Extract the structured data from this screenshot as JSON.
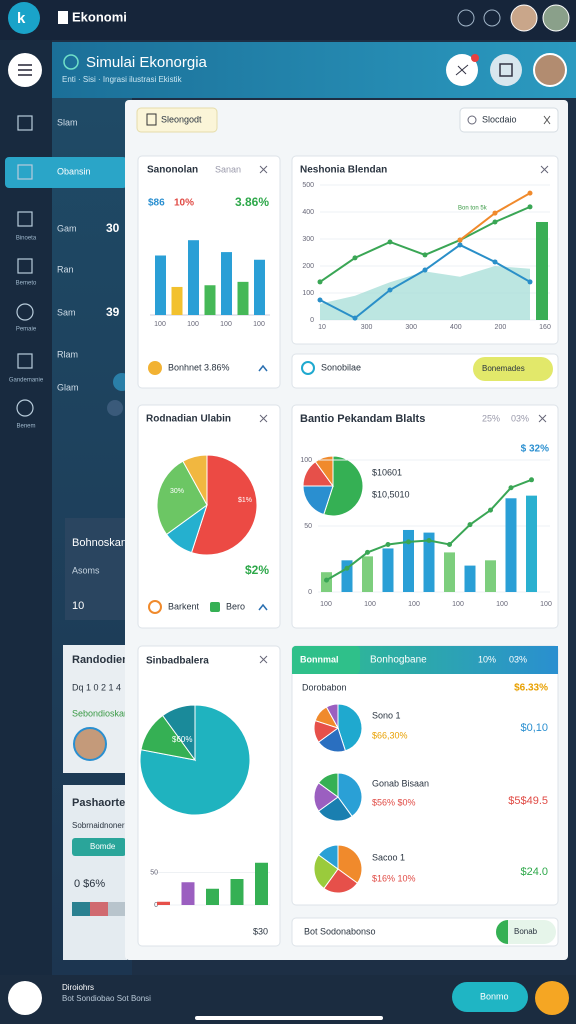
{
  "topbar": {
    "app_name": "Ekonomi"
  },
  "header": {
    "title": "Simulai Ekonorgia",
    "subtitle": "Enti · Sisi · Ingrasi ilustrasi Ekistik"
  },
  "sidebar": {
    "labels": [
      "Binoeta",
      "Bemeto",
      "Pemaie",
      "Gandemanie",
      "Benem"
    ]
  },
  "nav": {
    "items": [
      "Slam",
      "Obansin",
      "Gam",
      "Ran",
      "Sam",
      "Rlam",
      "Glam"
    ],
    "values": [
      "30",
      "39"
    ]
  },
  "background_cards": [
    {
      "title": "Bohnoskan",
      "line": "Asoms",
      "value": "10"
    },
    {
      "title": "Randodiem",
      "line": "Dq 1 0 2 1 4",
      "sub": "Sebondioskan"
    },
    {
      "title": "Pashaorte k",
      "sub": "Sobrnaidnoner",
      "button": "Bomde",
      "value": "0 $6%"
    }
  ],
  "toolbar": {
    "button": "Sleongodt",
    "search": "Slocdaio"
  },
  "cards": [
    {
      "title": "Sanonolan",
      "subtitle": "Sanan",
      "stats": [
        "$86",
        "10%",
        "3.86%"
      ],
      "ylim": [
        0,
        100
      ],
      "bars": {
        "values": [
          70,
          33,
          88,
          35,
          74,
          39,
          65
        ],
        "colors": [
          "#2a9fd6",
          "#f2c12e",
          "#2a9fd6",
          "#45b857",
          "#2a9fd6",
          "#45b857",
          "#2a9fd6"
        ]
      },
      "x_labels": [
        "100",
        "100",
        "100",
        "100"
      ],
      "footer": "Bonhnet 3.86%"
    },
    {
      "title": "Neshonia Blendan",
      "ylim": [
        0,
        500
      ],
      "yticks": [
        0,
        100,
        200,
        300,
        400,
        500
      ],
      "x_labels": [
        "10",
        "300",
        "300",
        "400",
        "200",
        "160"
      ],
      "area": {
        "color": "#9fdcd4",
        "values": [
          60,
          90,
          140,
          180,
          160,
          200,
          190
        ]
      },
      "lines": [
        {
          "color": "#3aa655",
          "values": [
            141,
            230,
            289,
            241,
            296,
            363,
            419
          ]
        },
        {
          "color": "#2a8fc8",
          "values": [
            74,
            7,
            111,
            185,
            278,
            215,
            141
          ]
        },
        {
          "color": "#f08a2c",
          "values": [
            null,
            null,
            null,
            null,
            296,
            396,
            470
          ]
        }
      ],
      "bar": {
        "color": "#3aae55",
        "value": 363
      },
      "annotation": "Bon ton 5k",
      "footer": {
        "text": "Sonobilae",
        "button": "Bonemades"
      }
    },
    {
      "title": "Rodnadian Ulabin",
      "pie": {
        "values": [
          55,
          10,
          27,
          8
        ],
        "colors": [
          "#ec4a44",
          "#25b0cf",
          "#6cc664",
          "#f1b740"
        ]
      },
      "pie_labels": [
        "$1%",
        "30%"
      ],
      "stat": "$2%",
      "legend": [
        "Barkent",
        "Bero"
      ]
    },
    {
      "title": "Bantio Pekandam Blalts",
      "stats": [
        "25%",
        "03%"
      ],
      "pie": {
        "values": [
          55,
          20,
          15,
          10
        ],
        "colors": [
          "#35b054",
          "#2a8fd0",
          "#e6504a",
          "#f08a2c"
        ]
      },
      "pie_notes": [
        "$10601",
        "$10,5010"
      ],
      "highlight": "$ 32%",
      "ylim": [
        0,
        100
      ],
      "yticks": [
        0,
        50,
        100
      ],
      "bars": {
        "values": [
          15,
          24,
          27,
          33,
          47,
          45,
          30,
          20,
          24,
          71,
          73
        ],
        "colors": [
          "#7dce7d",
          "#2a9fd6",
          "#7dce7d",
          "#2a9fd6",
          "#2a9fd6",
          "#2a9fd6",
          "#7dce7d",
          "#2a9fd6",
          "#7dce7d",
          "#2a9fd6",
          "#2ab0d0"
        ]
      },
      "line": {
        "color": "#3aa655",
        "values": [
          9,
          18,
          30,
          36,
          38,
          39,
          36,
          51,
          62,
          79,
          85
        ]
      },
      "x_labels": [
        "100",
        "100",
        "100",
        "100",
        "100",
        "100"
      ]
    },
    {
      "title": "Sinbadbalera",
      "pie": {
        "values": [
          78,
          12,
          10
        ],
        "colors": [
          "#1fb3bf",
          "#35b054",
          "#1a8a9a"
        ]
      },
      "pie_label": "$60%",
      "ylim": [
        0,
        100
      ],
      "yticks": [
        0,
        50
      ],
      "bars": {
        "values": [
          5,
          35,
          25,
          40,
          65
        ],
        "colors": [
          "#e6504a",
          "#9b5fc0",
          "#35b054",
          "#35b054",
          "#35b054"
        ]
      },
      "note": "$30"
    },
    {
      "tab": "Bonnmal",
      "title": "Bonhogbane",
      "stats": [
        "10%",
        "03%"
      ],
      "label": "Dorobabon",
      "highlight": "$6.33%",
      "rows": [
        {
          "name": "Sono 1",
          "detail": "$66,30%",
          "value": "$0,10",
          "pie": {
            "values": [
              45,
              20,
              15,
              12,
              8
            ],
            "colors": [
              "#1fa9cf",
              "#2a6fc0",
              "#e6504a",
              "#f08a2c",
              "#9b5fc0"
            ]
          }
        },
        {
          "name": "Gonab Bisaan",
          "detail": "$56% $0%",
          "value": "$5$49.5",
          "pie": {
            "values": [
              40,
              25,
              20,
              15
            ],
            "colors": [
              "#2aa0d6",
              "#1a7fb0",
              "#9b5fc0",
              "#35b054"
            ]
          }
        },
        {
          "name": "Sacoo 1",
          "detail": "$16% 10%",
          "value": "$24.0",
          "pie": {
            "values": [
              35,
              25,
              25,
              15
            ],
            "colors": [
              "#f08a2c",
              "#e6504a",
              "#9acb3c",
              "#2aa0d6"
            ]
          }
        }
      ],
      "footer": {
        "text": "Bot Sodonabonso",
        "button": "Bonab"
      }
    }
  ],
  "footer": {
    "title": "Diroiohrs",
    "text": "Bot Sondiobao Sot Bonsi",
    "button": "Bonmo"
  }
}
